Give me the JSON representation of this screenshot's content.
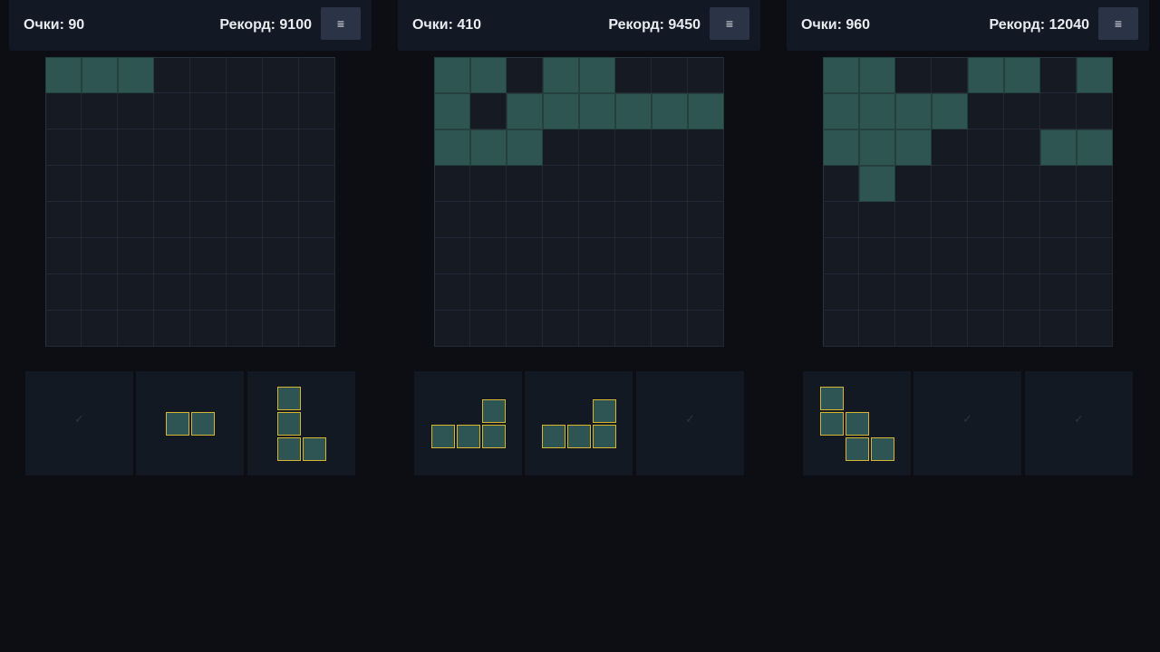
{
  "colors": {
    "background": "#0c0e13",
    "panel": "#131924",
    "board": "#161a23",
    "filled_cell": "#2f5553",
    "piece_outline": "#d7b52e",
    "menu_button": "#2b3346"
  },
  "games": [
    {
      "header": {
        "score_text": "Очки: 90",
        "record_text": "Рекорд: 9100",
        "menu_icon": "≡"
      },
      "board": {
        "rows": 8,
        "cols": 8,
        "filled": [
          [
            0,
            0
          ],
          [
            0,
            1
          ],
          [
            0,
            2
          ]
        ]
      },
      "pieces": [
        {
          "placed": true,
          "check": "✓",
          "cells": []
        },
        {
          "placed": false,
          "cells": [
            [
              0,
              0
            ],
            [
              0,
              1
            ]
          ]
        },
        {
          "placed": false,
          "cells": [
            [
              0,
              0
            ],
            [
              1,
              0
            ],
            [
              2,
              0
            ],
            [
              2,
              1
            ]
          ]
        }
      ]
    },
    {
      "header": {
        "score_text": "Очки: 410",
        "record_text": "Рекорд: 9450",
        "menu_icon": "≡"
      },
      "board": {
        "rows": 8,
        "cols": 8,
        "filled": [
          [
            0,
            0
          ],
          [
            0,
            1
          ],
          [
            0,
            3
          ],
          [
            0,
            4
          ],
          [
            1,
            0
          ],
          [
            1,
            2
          ],
          [
            1,
            3
          ],
          [
            1,
            4
          ],
          [
            1,
            5
          ],
          [
            1,
            6
          ],
          [
            1,
            7
          ],
          [
            2,
            0
          ],
          [
            2,
            1
          ],
          [
            2,
            2
          ]
        ]
      },
      "pieces": [
        {
          "placed": false,
          "cells": [
            [
              0,
              2
            ],
            [
              1,
              0
            ],
            [
              1,
              1
            ],
            [
              1,
              2
            ]
          ]
        },
        {
          "placed": false,
          "cells": [
            [
              0,
              2
            ],
            [
              1,
              0
            ],
            [
              1,
              1
            ],
            [
              1,
              2
            ]
          ]
        },
        {
          "placed": true,
          "check": "✓",
          "cells": []
        }
      ]
    },
    {
      "header": {
        "score_text": "Очки: 960",
        "record_text": "Рекорд: 12040",
        "menu_icon": "≡"
      },
      "board": {
        "rows": 8,
        "cols": 8,
        "filled": [
          [
            0,
            0
          ],
          [
            0,
            1
          ],
          [
            0,
            4
          ],
          [
            0,
            5
          ],
          [
            0,
            7
          ],
          [
            1,
            0
          ],
          [
            1,
            1
          ],
          [
            1,
            2
          ],
          [
            1,
            3
          ],
          [
            2,
            0
          ],
          [
            2,
            1
          ],
          [
            2,
            2
          ],
          [
            2,
            6
          ],
          [
            2,
            7
          ],
          [
            3,
            1
          ]
        ]
      },
      "pieces": [
        {
          "placed": false,
          "cells": [
            [
              0,
              0
            ],
            [
              1,
              0
            ],
            [
              1,
              1
            ],
            [
              2,
              1
            ],
            [
              2,
              2
            ]
          ]
        },
        {
          "placed": true,
          "check": "✓",
          "cells": []
        },
        {
          "placed": true,
          "check": "✓",
          "cells": []
        }
      ]
    }
  ]
}
